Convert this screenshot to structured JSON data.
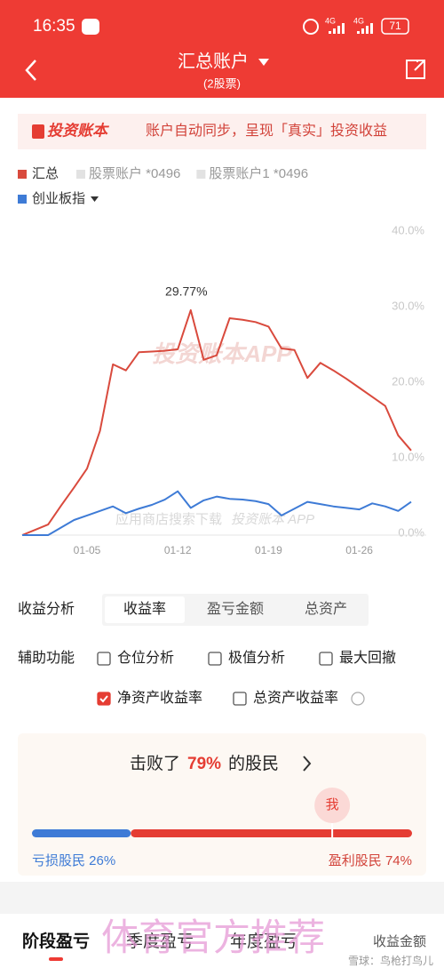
{
  "status_bar": {
    "time": "16:35",
    "network": "4G",
    "network2": "4G",
    "battery": "71"
  },
  "header": {
    "title": "汇总账户",
    "subtitle": "(2股票)"
  },
  "banner": {
    "brand": "投资账本",
    "text": "账户自动同步，呈现「真实」投资收益"
  },
  "chart_data": {
    "type": "line",
    "categories": [
      null,
      null,
      null,
      null,
      null,
      "01-05",
      null,
      null,
      null,
      null,
      null,
      null,
      "01-12",
      null,
      null,
      null,
      null,
      null,
      null,
      "01-19",
      null,
      null,
      null,
      null,
      null,
      null,
      "01-26",
      null,
      null,
      null,
      null
    ],
    "series": [
      {
        "name": "汇总",
        "color": "#d94a3d",
        "values": [
          0,
          0.7,
          1.4,
          3.9,
          6.3,
          8.8,
          13.8,
          22.6,
          21.8,
          24.2,
          24.3,
          24.4,
          24.6,
          29.77,
          23.2,
          23.8,
          28.7,
          28.5,
          28.2,
          27.6,
          24.7,
          24.5,
          20.8,
          22.8,
          21.8,
          20.7,
          19.5,
          18.3,
          17.1,
          13.2,
          11.2
        ],
        "value_labels": [
          null,
          null,
          null,
          null,
          null,
          null,
          null,
          null,
          null,
          null,
          null,
          null,
          null,
          "29.77%",
          null,
          null,
          null,
          null,
          null,
          null,
          null,
          null,
          null,
          null,
          null,
          null,
          null,
          null,
          null,
          null,
          null
        ]
      },
      {
        "name": "创业板指",
        "color": "#3e7bd6",
        "values": [
          0,
          0,
          0,
          1.0,
          2.0,
          2.6,
          3.2,
          3.8,
          2.9,
          3.5,
          4.0,
          4.7,
          5.8,
          3.6,
          4.6,
          5.1,
          4.8,
          4.7,
          4.5,
          4.1,
          2.6,
          3.5,
          4.4,
          4.1,
          3.8,
          3.6,
          3.4,
          4.2,
          3.8,
          3.2,
          4.4
        ]
      }
    ],
    "inactive_legend": [
      "股票账户 *0496",
      "股票账户1 *0496"
    ],
    "ylim": [
      0,
      40
    ],
    "yticks": [
      {
        "value": 0,
        "label": "0.0%"
      },
      {
        "value": 10,
        "label": "10.0%"
      },
      {
        "value": 20,
        "label": "20.0%"
      },
      {
        "value": 30,
        "label": "30.0%"
      },
      {
        "value": 40,
        "label": "40.0%"
      }
    ],
    "grid": false,
    "watermarks": [
      "投资账本APP",
      "应用商店搜索下载",
      "投资账本 APP"
    ]
  },
  "analysis": {
    "label": "收益分析",
    "tabs": [
      "收益率",
      "盈亏金额",
      "总资产"
    ]
  },
  "tools": {
    "label": "辅助功能",
    "options": [
      {
        "text": "仓位分析",
        "checked": false
      },
      {
        "text": "极值分析",
        "checked": false
      },
      {
        "text": "最大回撤",
        "checked": false
      },
      {
        "text": "净资产收益率",
        "checked": true
      },
      {
        "text": "总资产收益率",
        "checked": false
      }
    ]
  },
  "beat": {
    "prefix": "击败了",
    "percent_label": "79%",
    "percent": 79,
    "suffix": "的股民",
    "me": "我",
    "loss_label": "亏损股民 26%",
    "loss_share": 26,
    "profit_label": "盈利股民 74%",
    "profit_share": 74
  },
  "tabs": {
    "items": [
      "阶段盈亏",
      "季度盈亏",
      "年度盈亏"
    ],
    "toggle": "收益金额"
  },
  "overlay": "体育官方推荐",
  "footer_watermark": "雪球：鸟枪打鸟儿"
}
